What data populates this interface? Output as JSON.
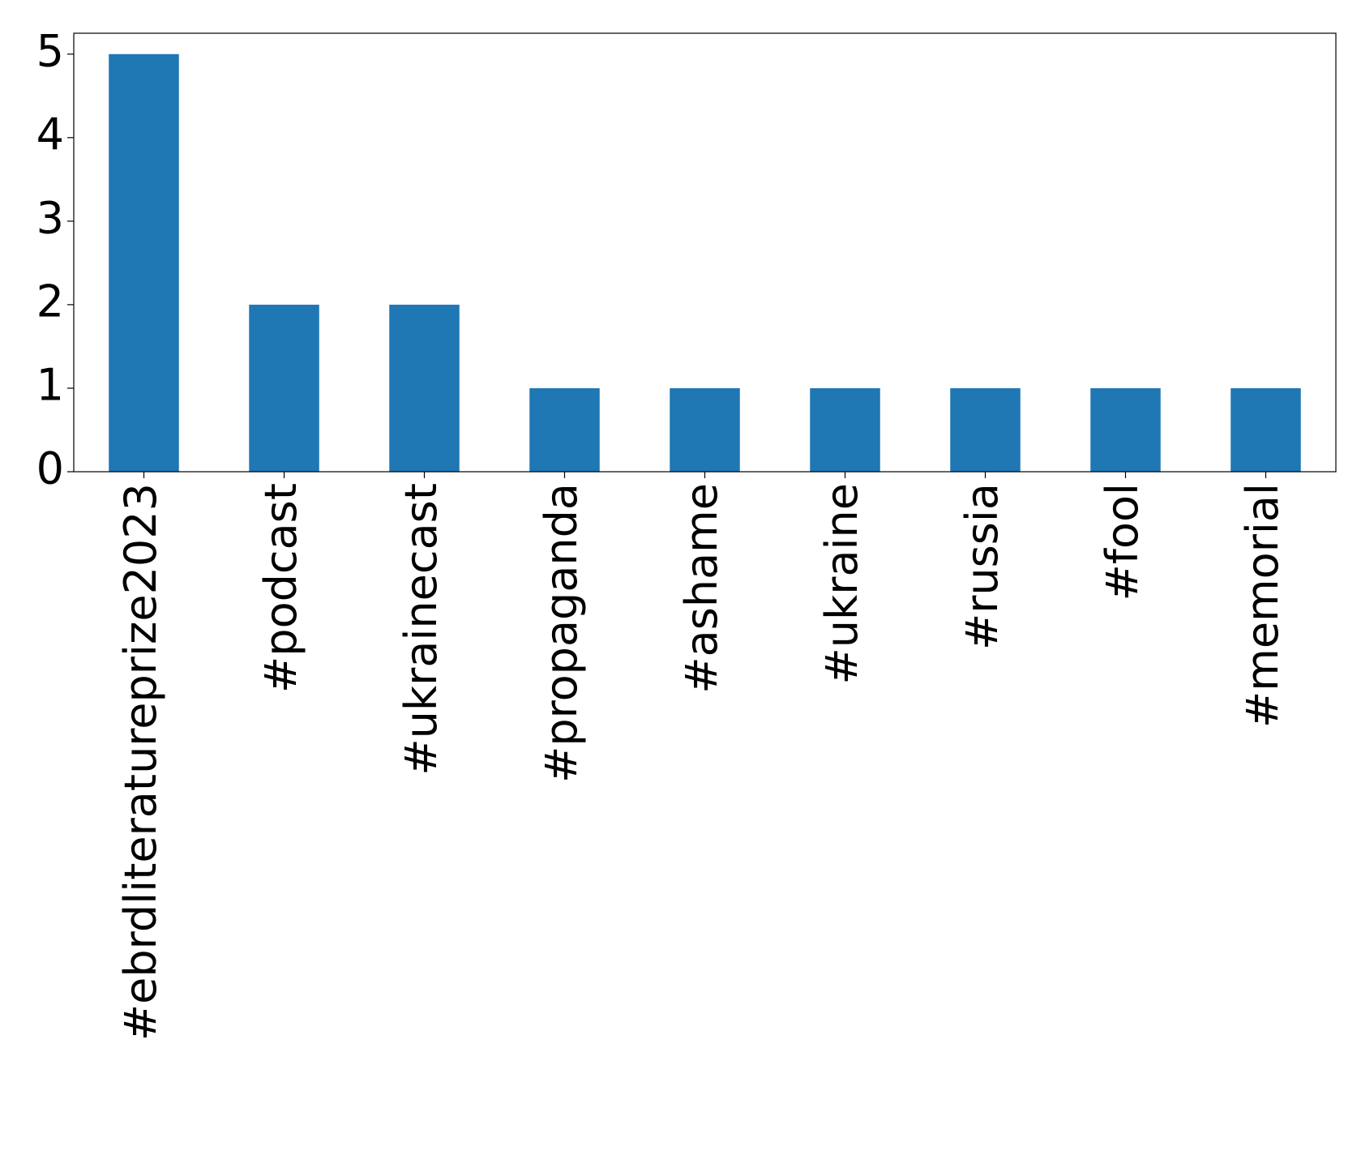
{
  "chart_data": {
    "type": "bar",
    "categories": [
      "#ebrdliteratureprize2023",
      "#podcast",
      "#ukrainecast",
      "#propaganda",
      "#ashame",
      "#ukraine",
      "#russia",
      "#fool",
      "#memorial"
    ],
    "values": [
      5,
      2,
      2,
      1,
      1,
      1,
      1,
      1,
      1
    ],
    "color": "#1f77b4",
    "ylim": [
      0,
      5.25
    ],
    "yticks": [
      0,
      1,
      2,
      3,
      4,
      5
    ],
    "grid": false
  }
}
